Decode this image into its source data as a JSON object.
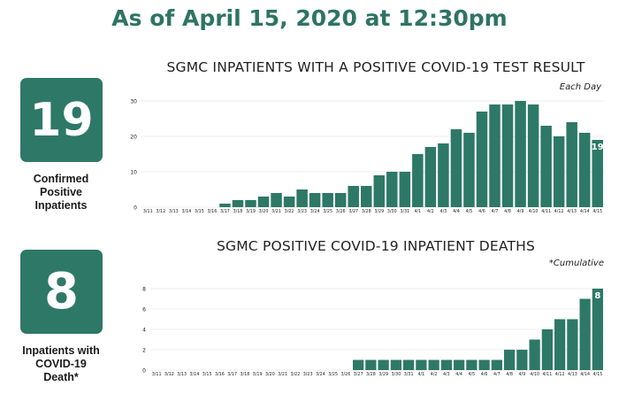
{
  "headline": "As of April 15, 2020 at 12:30pm",
  "stats": [
    {
      "value": "19",
      "caption": "Confirmed\nPositive\nInpatients"
    },
    {
      "value": "8",
      "caption": "Inpatients with\nCOVID-19\nDeath*"
    }
  ],
  "colors": {
    "bar": "#2e7867",
    "accent": "#2e7465",
    "grid": "#d9d9d9",
    "text": "#222222"
  },
  "chart_data": [
    {
      "type": "bar",
      "title": "SGMC INPATIENTS WITH A POSITIVE COVID-19 TEST RESULT",
      "note": "Each Day",
      "categories": [
        "3/11",
        "3/12",
        "3/13",
        "3/14",
        "3/15",
        "3/16",
        "3/17",
        "3/18",
        "3/19",
        "3/20",
        "3/21",
        "3/22",
        "3/23",
        "3/24",
        "3/25",
        "3/26",
        "3/27",
        "3/28",
        "3/29",
        "3/30",
        "3/31",
        "4/1",
        "4/2",
        "4/3",
        "4/4",
        "4/5",
        "4/6",
        "4/7",
        "4/8",
        "4/9",
        "4/10",
        "4/11",
        "4/12",
        "4/13",
        "4/14",
        "4/15"
      ],
      "values": [
        0,
        0,
        0,
        0,
        0,
        0,
        1,
        2,
        2,
        3,
        4,
        3,
        5,
        4,
        4,
        4,
        6,
        6,
        9,
        10,
        10,
        15,
        17,
        18,
        22,
        21,
        27,
        29,
        29,
        30,
        29,
        23,
        20,
        24,
        21,
        19
      ],
      "ylim": [
        0,
        30
      ],
      "yticks": [
        0,
        10,
        20,
        30
      ],
      "last_label": "19",
      "grid": true
    },
    {
      "type": "bar",
      "title": "SGMC POSITIVE COVID-19 INPATIENT DEATHS",
      "note": "*Cumulative",
      "categories": [
        "3/11",
        "3/12",
        "3/13",
        "3/14",
        "3/15",
        "3/16",
        "3/17",
        "3/18",
        "3/19",
        "3/20",
        "3/21",
        "3/22",
        "3/23",
        "3/24",
        "3/25",
        "3/26",
        "3/27",
        "3/28",
        "3/29",
        "3/30",
        "3/31",
        "4/1",
        "4/2",
        "4/3",
        "4/4",
        "4/5",
        "4/6",
        "4/7",
        "4/8",
        "4/9",
        "4/10",
        "4/11",
        "4/12",
        "4/13",
        "4/14",
        "4/15"
      ],
      "values": [
        0,
        0,
        0,
        0,
        0,
        0,
        0,
        0,
        0,
        0,
        0,
        0,
        0,
        0,
        0,
        0,
        1,
        1,
        1,
        1,
        1,
        1,
        1,
        1,
        1,
        1,
        1,
        1,
        2,
        2,
        3,
        4,
        5,
        5,
        7,
        8
      ],
      "ylim": [
        0,
        8
      ],
      "yticks": [
        0,
        2,
        4,
        6,
        8
      ],
      "last_label": "8",
      "grid": true
    }
  ]
}
